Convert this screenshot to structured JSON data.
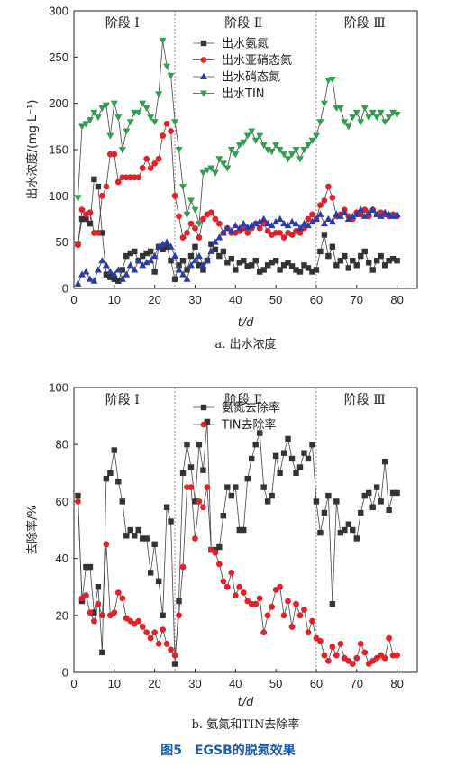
{
  "chart_data": [
    {
      "type": "line",
      "subtitle": "a. 出水浓度",
      "xlabel": "t/d",
      "ylabel": "出水浓度/(mg·L⁻¹)",
      "xlim": [
        0,
        85
      ],
      "ylim": [
        0,
        300
      ],
      "xticks": [
        "0",
        "10",
        "20",
        "30",
        "40",
        "50",
        "60",
        "70",
        "80"
      ],
      "yticks": [
        "0",
        "50",
        "100",
        "150",
        "200",
        "250",
        "300"
      ],
      "stages": [
        {
          "label": "阶段 Ⅰ",
          "at": 12
        },
        {
          "label": "阶段 Ⅱ",
          "at": 42
        },
        {
          "label": "阶段 Ⅲ",
          "at": 72
        }
      ],
      "stage_boundaries": [
        25,
        60
      ],
      "legend_position": "top-center",
      "series": [
        {
          "name": "出水氨氮",
          "color": "#333333",
          "marker": "square",
          "x": [
            1,
            2,
            3,
            4,
            5,
            6,
            7,
            8,
            9,
            10,
            11,
            12,
            13,
            14,
            15,
            16,
            17,
            18,
            19,
            20,
            21,
            22,
            23,
            24,
            25,
            26,
            27,
            28,
            29,
            30,
            31,
            32,
            33,
            34,
            35,
            36,
            37,
            38,
            39,
            40,
            41,
            42,
            43,
            44,
            45,
            46,
            47,
            48,
            49,
            50,
            51,
            52,
            53,
            54,
            55,
            56,
            57,
            58,
            59,
            60,
            61,
            62,
            63,
            64,
            65,
            66,
            67,
            68,
            69,
            70,
            71,
            72,
            73,
            74,
            75,
            76,
            77,
            78,
            79,
            80
          ],
          "y": [
            48,
            75,
            75,
            70,
            118,
            110,
            60,
            15,
            12,
            10,
            8,
            20,
            35,
            38,
            40,
            30,
            35,
            38,
            40,
            18,
            45,
            42,
            45,
            30,
            10,
            25,
            30,
            20,
            35,
            45,
            25,
            20,
            30,
            48,
            42,
            35,
            40,
            28,
            32,
            20,
            28,
            30,
            24,
            25,
            30,
            18,
            20,
            25,
            28,
            30,
            20,
            25,
            28,
            24,
            20,
            18,
            25,
            22,
            18,
            20,
            40,
            58,
            35,
            45,
            25,
            30,
            35,
            22,
            30,
            25,
            35,
            40,
            28,
            20,
            30,
            35,
            25,
            30,
            32,
            30
          ]
        },
        {
          "name": "出水亚硝态氮",
          "color": "#e0222b",
          "marker": "circle",
          "x": [
            1,
            2,
            3,
            4,
            5,
            6,
            7,
            8,
            9,
            10,
            11,
            12,
            13,
            14,
            15,
            16,
            17,
            18,
            19,
            20,
            21,
            22,
            23,
            24,
            25,
            26,
            27,
            28,
            29,
            30,
            31,
            32,
            33,
            34,
            35,
            36,
            37,
            38,
            39,
            40,
            41,
            42,
            43,
            44,
            45,
            46,
            47,
            48,
            49,
            50,
            51,
            52,
            53,
            54,
            55,
            56,
            57,
            58,
            59,
            60,
            61,
            62,
            63,
            64,
            65,
            66,
            67,
            68,
            69,
            70,
            71,
            72,
            73,
            74,
            75,
            76,
            77,
            78,
            79,
            80
          ],
          "y": [
            47,
            85,
            80,
            82,
            60,
            60,
            100,
            110,
            145,
            145,
            115,
            120,
            120,
            120,
            120,
            120,
            130,
            140,
            130,
            135,
            140,
            165,
            178,
            170,
            100,
            78,
            55,
            60,
            70,
            65,
            55,
            75,
            80,
            82,
            75,
            70,
            60,
            65,
            60,
            60,
            62,
            65,
            60,
            65,
            70,
            65,
            70,
            62,
            58,
            60,
            60,
            55,
            60,
            58,
            62,
            60,
            65,
            75,
            80,
            75,
            90,
            95,
            110,
            98,
            78,
            80,
            85,
            78,
            75,
            82,
            80,
            85,
            78,
            85,
            80,
            82,
            80,
            78,
            80,
            78
          ]
        },
        {
          "name": "出水硝态氮",
          "color": "#2a3ca8",
          "marker": "triangle-up",
          "x": [
            1,
            2,
            3,
            4,
            5,
            6,
            7,
            8,
            9,
            10,
            11,
            12,
            13,
            14,
            15,
            16,
            17,
            18,
            19,
            20,
            21,
            22,
            23,
            24,
            25,
            26,
            27,
            28,
            29,
            30,
            31,
            32,
            33,
            34,
            35,
            36,
            37,
            38,
            39,
            40,
            41,
            42,
            43,
            44,
            45,
            46,
            47,
            48,
            49,
            50,
            51,
            52,
            53,
            54,
            55,
            56,
            57,
            58,
            59,
            60,
            61,
            62,
            63,
            64,
            65,
            66,
            67,
            68,
            69,
            70,
            71,
            72,
            73,
            74,
            75,
            76,
            77,
            78,
            79,
            80
          ],
          "y": [
            5,
            15,
            18,
            10,
            8,
            20,
            30,
            25,
            18,
            15,
            20,
            10,
            15,
            25,
            20,
            30,
            25,
            28,
            30,
            35,
            45,
            48,
            50,
            45,
            35,
            20,
            15,
            10,
            25,
            30,
            35,
            25,
            30,
            40,
            50,
            55,
            60,
            65,
            62,
            68,
            65,
            70,
            66,
            68,
            70,
            72,
            75,
            70,
            68,
            72,
            75,
            70,
            68,
            72,
            70,
            65,
            70,
            68,
            72,
            75,
            80,
            70,
            75,
            72,
            80,
            78,
            82,
            75,
            78,
            80,
            85,
            78,
            82,
            85,
            80,
            78,
            82,
            80,
            78,
            80
          ]
        },
        {
          "name": "出水TIN",
          "color": "#2e9e4f",
          "marker": "triangle-down",
          "x": [
            1,
            2,
            3,
            4,
            5,
            6,
            7,
            8,
            9,
            10,
            11,
            12,
            13,
            14,
            15,
            16,
            17,
            18,
            19,
            20,
            21,
            22,
            23,
            24,
            25,
            26,
            27,
            28,
            29,
            30,
            31,
            32,
            33,
            34,
            35,
            36,
            37,
            38,
            39,
            40,
            41,
            42,
            43,
            44,
            45,
            46,
            47,
            48,
            49,
            50,
            51,
            52,
            53,
            54,
            55,
            56,
            57,
            58,
            59,
            60,
            61,
            62,
            63,
            64,
            65,
            66,
            67,
            68,
            69,
            70,
            71,
            72,
            73,
            74,
            75,
            76,
            77,
            78,
            79,
            80
          ],
          "y": [
            98,
            175,
            178,
            182,
            190,
            185,
            195,
            198,
            165,
            200,
            185,
            150,
            170,
            180,
            190,
            190,
            200,
            195,
            185,
            180,
            210,
            268,
            240,
            230,
            180,
            150,
            110,
            80,
            95,
            85,
            70,
            125,
            128,
            130,
            125,
            140,
            135,
            130,
            150,
            145,
            155,
            158,
            165,
            170,
            160,
            165,
            155,
            150,
            148,
            155,
            150,
            145,
            140,
            145,
            150,
            140,
            150,
            155,
            160,
            165,
            180,
            200,
            225,
            226,
            195,
            195,
            180,
            175,
            185,
            190,
            180,
            195,
            185,
            190,
            185,
            190,
            180,
            185,
            190,
            188
          ]
        }
      ]
    },
    {
      "type": "line",
      "subtitle": "b. 氨氮和TIN去除率",
      "xlabel": "t/d",
      "ylabel": "去除率/%",
      "xlim": [
        0,
        85
      ],
      "ylim": [
        0,
        100
      ],
      "xticks": [
        "0",
        "10",
        "20",
        "30",
        "40",
        "50",
        "60",
        "70",
        "80"
      ],
      "yticks": [
        "0",
        "20",
        "40",
        "60",
        "80",
        "100"
      ],
      "stages": [
        {
          "label": "阶段 Ⅰ",
          "at": 12
        },
        {
          "label": "阶段 Ⅱ",
          "at": 42
        },
        {
          "label": "阶段 Ⅲ",
          "at": 72
        }
      ],
      "stage_boundaries": [
        25,
        60
      ],
      "legend_position": "top-center",
      "series": [
        {
          "name": "氨氮去除率",
          "color": "#333333",
          "marker": "square",
          "x": [
            1,
            2,
            3,
            4,
            5,
            6,
            7,
            8,
            9,
            10,
            11,
            12,
            13,
            14,
            15,
            16,
            17,
            18,
            19,
            20,
            21,
            22,
            23,
            24,
            25,
            26,
            27,
            28,
            29,
            30,
            31,
            32,
            33,
            34,
            35,
            36,
            37,
            38,
            39,
            40,
            41,
            42,
            43,
            44,
            45,
            46,
            47,
            48,
            49,
            50,
            51,
            52,
            53,
            54,
            55,
            56,
            57,
            58,
            59,
            60,
            61,
            62,
            63,
            64,
            65,
            66,
            67,
            68,
            69,
            70,
            71,
            72,
            73,
            74,
            75,
            76,
            77,
            78,
            79,
            80
          ],
          "y": [
            62,
            25,
            37,
            37,
            21,
            30,
            7,
            68,
            70,
            78,
            67,
            60,
            48,
            50,
            48,
            50,
            47,
            47,
            35,
            45,
            32,
            20,
            58,
            53,
            3,
            25,
            70,
            80,
            72,
            60,
            80,
            71,
            88,
            43,
            43,
            44,
            55,
            65,
            62,
            65,
            50,
            50,
            68,
            75,
            80,
            84,
            65,
            60,
            62,
            76,
            70,
            77,
            82,
            75,
            70,
            72,
            77,
            75,
            80,
            60,
            49,
            56,
            62,
            24,
            60,
            49,
            50,
            52,
            50,
            47,
            56,
            62,
            63,
            58,
            65,
            60,
            74,
            57,
            63,
            63
          ]
        },
        {
          "name": "TIN去除率",
          "color": "#e0222b",
          "marker": "circle",
          "x": [
            1,
            2,
            3,
            4,
            5,
            6,
            7,
            8,
            9,
            10,
            11,
            12,
            13,
            14,
            15,
            16,
            17,
            18,
            19,
            20,
            21,
            22,
            23,
            24,
            25,
            26,
            27,
            28,
            29,
            30,
            31,
            32,
            33,
            34,
            35,
            36,
            37,
            38,
            39,
            40,
            41,
            42,
            43,
            44,
            45,
            46,
            47,
            48,
            49,
            50,
            51,
            52,
            53,
            54,
            55,
            56,
            57,
            58,
            59,
            60,
            61,
            62,
            63,
            64,
            65,
            66,
            67,
            68,
            69,
            70,
            71,
            72,
            73,
            74,
            75,
            76,
            77,
            78,
            79,
            80
          ],
          "y": [
            60,
            26,
            27,
            21,
            18,
            24,
            20,
            45,
            20,
            21,
            28,
            26,
            19,
            18,
            17,
            18,
            16,
            14,
            12,
            14,
            10,
            15,
            10,
            8,
            6,
            20,
            37,
            65,
            65,
            47,
            60,
            58,
            65,
            43,
            42,
            38,
            32,
            30,
            35,
            27,
            30,
            28,
            25,
            24,
            24,
            26,
            14,
            20,
            23,
            29,
            30,
            20,
            25,
            16,
            24,
            20,
            22,
            14,
            18,
            12,
            11,
            6,
            4,
            9,
            6,
            10,
            5,
            4,
            3,
            5,
            10,
            7,
            3,
            4,
            5,
            6,
            5,
            12,
            6,
            6
          ]
        }
      ]
    }
  ],
  "caption": "图5　EGSB的脱氮效果"
}
